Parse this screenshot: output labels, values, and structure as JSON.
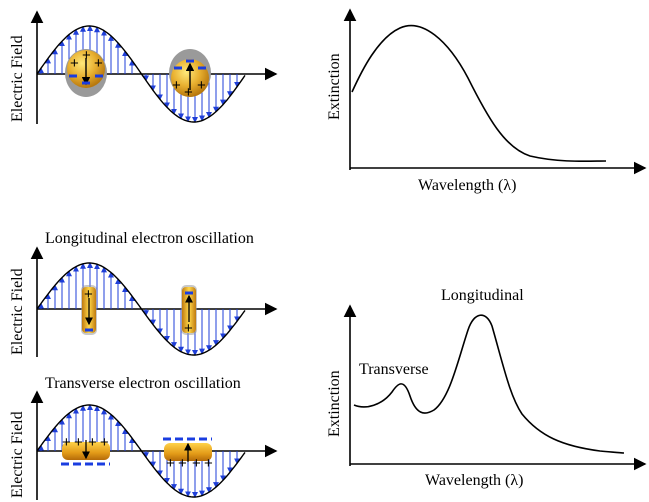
{
  "labels": {
    "electric_field": "Electric Field",
    "extinction": "Extinction",
    "wavelength": "Wavelength (λ)",
    "longitudinal_title": "Longitudinal electron oscillation",
    "transverse_title": "Transverse electron oscillation",
    "peak_longitudinal": "Longitudinal",
    "peak_transverse": "Transverse"
  },
  "colors": {
    "field_arrow": "#1f3fd8",
    "charge_minus": "#1a3de0",
    "gold": "#e0a420",
    "shell": "#9a9a9a"
  },
  "signs": {
    "plus": "+"
  }
}
